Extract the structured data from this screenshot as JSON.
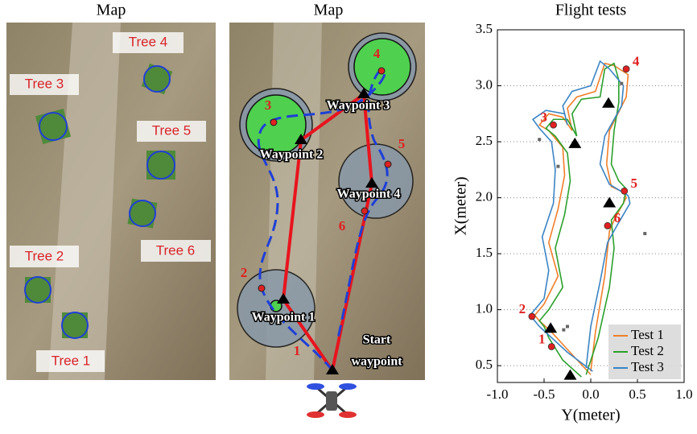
{
  "map_left": {
    "title": "Map",
    "tree_labels": [
      "Tree 1",
      "Tree 2",
      "Tree 3",
      "Tree 4",
      "Tree 5",
      "Tree 6"
    ]
  },
  "map_right": {
    "title": "Map",
    "waypoint_labels": [
      "Waypoint 1",
      "Waypoint 2",
      "Waypoint 3",
      "Waypoint 4"
    ],
    "start_label": [
      "Start",
      "waypoint"
    ],
    "numbers": [
      "1",
      "2",
      "3",
      "4",
      "5",
      "6"
    ]
  },
  "chart_data": {
    "type": "line",
    "title": "Flight tests",
    "x_label": "Y(meter)",
    "y_label": "X(meter)",
    "xlim": [
      -1,
      1
    ],
    "ylim": [
      0.35,
      3.5
    ],
    "xticks": [
      {
        "value": -1,
        "label": "-1.0"
      },
      -0.5,
      {
        "value": 0,
        "label": "0.0"
      },
      0.5,
      {
        "value": 1,
        "label": "1.0"
      }
    ],
    "yticks": [
      0.5,
      {
        "value": 1,
        "label": "1.0"
      },
      1.5,
      {
        "value": 2,
        "label": "2.0"
      },
      2.5,
      {
        "value": 3,
        "label": "3.0"
      },
      3.5
    ],
    "grid": true,
    "legend": "lower right",
    "series": [
      {
        "name": "Test 1",
        "color": "#f07f2a",
        "x": [
          0.0,
          -0.2,
          -0.42,
          -0.55,
          -0.6,
          -0.5,
          -0.35,
          -0.45,
          -0.35,
          -0.28,
          -0.3,
          -0.45,
          -0.55,
          -0.45,
          -0.3,
          -0.2,
          -0.25,
          -0.15,
          0.05,
          0.15,
          0.25,
          0.4,
          0.38,
          0.2,
          0.17,
          0.22,
          0.35,
          0.38,
          0.25,
          0.2,
          0.15,
          0.05,
          0.0
        ],
        "values": [
          0.42,
          0.6,
          0.8,
          0.9,
          0.95,
          1.05,
          1.3,
          1.6,
          1.9,
          2.2,
          2.45,
          2.6,
          2.65,
          2.75,
          2.72,
          2.6,
          2.8,
          2.9,
          2.95,
          3.2,
          3.18,
          3.1,
          2.9,
          2.6,
          2.3,
          2.1,
          2.05,
          2.0,
          1.8,
          1.7,
          1.3,
          0.8,
          0.45
        ]
      },
      {
        "name": "Test 2",
        "color": "#2ca02c",
        "x": [
          -0.1,
          -0.3,
          -0.45,
          -0.5,
          -0.55,
          -0.45,
          -0.3,
          -0.38,
          -0.28,
          -0.22,
          -0.25,
          -0.38,
          -0.48,
          -0.4,
          -0.25,
          -0.15,
          -0.2,
          -0.1,
          0.1,
          0.15,
          0.25,
          0.3,
          0.3,
          0.25,
          0.22,
          0.3,
          0.38,
          0.35,
          0.22,
          0.25,
          0.2,
          0.08,
          -0.05
        ],
        "values": [
          0.4,
          0.55,
          0.75,
          0.85,
          0.9,
          1.0,
          1.2,
          1.55,
          1.85,
          2.15,
          2.4,
          2.55,
          2.62,
          2.7,
          2.7,
          2.55,
          2.75,
          2.88,
          2.9,
          3.15,
          3.2,
          3.05,
          2.85,
          2.6,
          2.3,
          2.15,
          2.08,
          1.95,
          1.8,
          1.55,
          1.2,
          0.75,
          0.42
        ]
      },
      {
        "name": "Test 3",
        "color": "#3b84c4",
        "x": [
          0.02,
          -0.25,
          -0.55,
          -0.65,
          -0.6,
          -0.5,
          -0.45,
          -0.52,
          -0.4,
          -0.38,
          -0.42,
          -0.55,
          -0.62,
          -0.48,
          -0.28,
          -0.25,
          -0.3,
          -0.2,
          0.0,
          0.1,
          0.2,
          0.35,
          0.33,
          0.15,
          0.1,
          0.2,
          0.4,
          0.42,
          0.28,
          0.18,
          0.1,
          0.0,
          -0.05
        ],
        "values": [
          0.45,
          0.62,
          0.85,
          0.95,
          1.0,
          1.1,
          1.35,
          1.65,
          1.95,
          2.25,
          2.5,
          2.62,
          2.7,
          2.78,
          2.75,
          2.65,
          2.82,
          2.95,
          3.0,
          3.22,
          3.15,
          3.0,
          2.82,
          2.55,
          2.3,
          2.12,
          2.02,
          1.95,
          1.75,
          1.6,
          1.25,
          0.85,
          0.48
        ]
      }
    ],
    "targets": {
      "x": [
        -0.42,
        -0.63,
        -0.4,
        0.38,
        0.36,
        0.18
      ],
      "values": [
        0.67,
        0.94,
        2.65,
        3.15,
        2.06,
        1.75
      ],
      "labels": [
        "1",
        "2",
        "3",
        "4",
        "5",
        "6"
      ],
      "color": "#e02020"
    },
    "waypoints": {
      "x": [
        -0.22,
        -0.43,
        -0.17,
        0.19,
        0.2
      ],
      "values": [
        0.41,
        0.83,
        2.48,
        2.84,
        1.95
      ]
    },
    "tree_points": {
      "x": [
        -0.55,
        -0.35,
        0.33,
        0.58,
        -0.29,
        -0.25
      ],
      "values": [
        2.52,
        2.28,
        3.02,
        1.68,
        0.82,
        0.85
      ]
    }
  }
}
